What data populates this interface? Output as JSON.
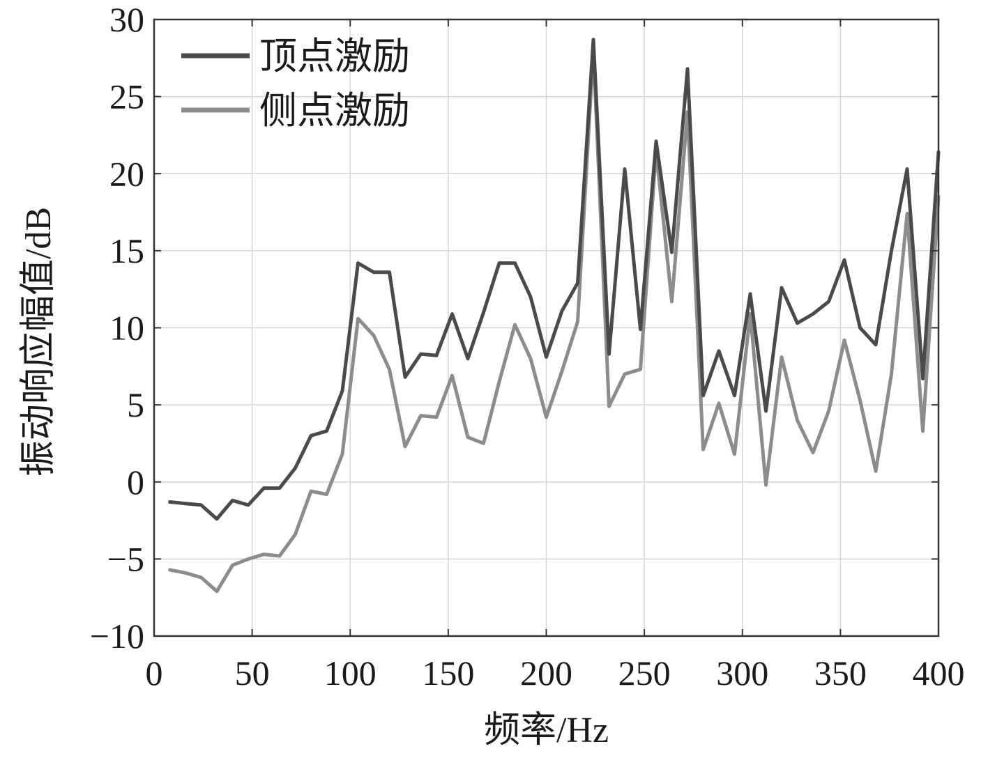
{
  "chart_data": {
    "type": "line",
    "xlabel": "频率/Hz",
    "ylabel": "振动响应幅值/dB",
    "xlim": [
      0,
      400
    ],
    "ylim": [
      -10,
      30
    ],
    "x_ticks": [
      0,
      50,
      100,
      150,
      200,
      250,
      300,
      350,
      400
    ],
    "x_tick_labels": [
      "0",
      "50",
      "100",
      "150",
      "200",
      "250",
      "300",
      "350",
      "400"
    ],
    "y_ticks": [
      -10,
      -5,
      0,
      5,
      10,
      15,
      20,
      25,
      30
    ],
    "y_tick_labels": [
      "−10",
      "−5",
      "0",
      "5",
      "10",
      "15",
      "20",
      "25",
      "30"
    ],
    "grid": true,
    "legend_position": "top-left",
    "x": [
      8,
      16,
      24,
      32,
      40,
      48,
      56,
      64,
      72,
      80,
      88,
      96,
      104,
      112,
      120,
      128,
      136,
      144,
      152,
      160,
      168,
      176,
      184,
      192,
      200,
      208,
      216,
      224,
      232,
      240,
      248,
      256,
      264,
      272,
      280,
      288,
      296,
      304,
      312,
      320,
      328,
      336,
      344,
      352,
      360,
      368,
      376,
      384,
      392,
      400
    ],
    "series": [
      {
        "name": "顶点激励",
        "color": "#4a4a4a",
        "values": [
          -1.3,
          -1.4,
          -1.5,
          -2.4,
          -1.2,
          -1.5,
          -0.4,
          -0.4,
          0.9,
          3.0,
          3.3,
          5.9,
          14.2,
          13.6,
          13.6,
          6.8,
          8.3,
          8.2,
          10.9,
          8.0,
          11.0,
          14.2,
          14.2,
          12.0,
          8.1,
          11.1,
          12.9,
          28.7,
          8.3,
          20.3,
          9.9,
          22.1,
          14.9,
          26.8,
          5.6,
          8.5,
          5.6,
          12.2,
          4.6,
          12.6,
          10.3,
          10.9,
          11.7,
          14.4,
          10.0,
          8.9,
          15.0,
          20.3,
          6.7,
          21.4
        ]
      },
      {
        "name": "侧点激励",
        "color": "#8c8c8c",
        "values": [
          -5.7,
          -5.9,
          -6.2,
          -7.1,
          -5.4,
          -5.0,
          -4.7,
          -4.8,
          -3.4,
          -0.6,
          -0.8,
          1.8,
          10.6,
          9.5,
          7.3,
          2.3,
          4.3,
          4.2,
          6.9,
          2.9,
          2.5,
          6.5,
          10.2,
          8.0,
          4.2,
          7.2,
          10.4,
          28.0,
          4.9,
          7.0,
          7.3,
          21.5,
          11.7,
          24.0,
          2.1,
          5.1,
          1.8,
          10.9,
          -0.2,
          8.1,
          4.0,
          1.9,
          4.6,
          9.2,
          5.3,
          0.7,
          7.0,
          17.4,
          3.3,
          18.5
        ]
      }
    ]
  }
}
